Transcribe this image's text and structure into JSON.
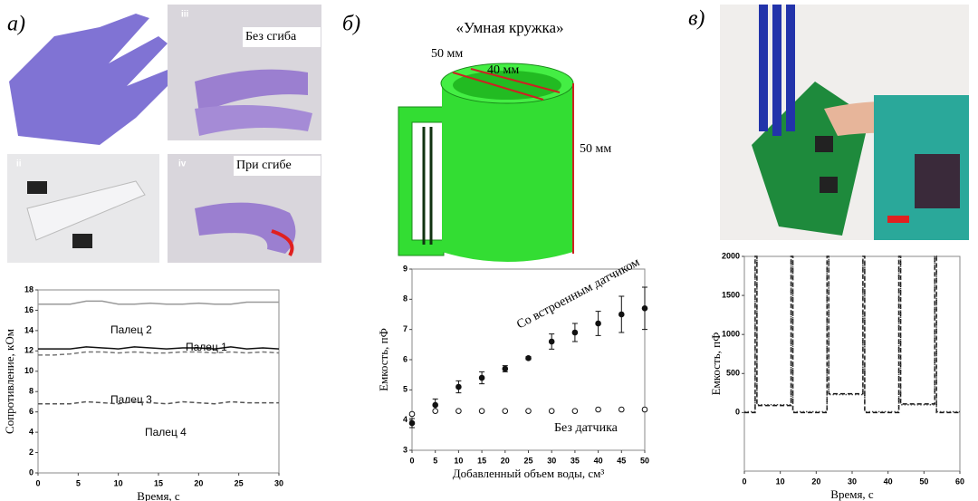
{
  "panels": {
    "a": {
      "label": "а)",
      "photo_labels": [
        "iii",
        "Без сгиба",
        "ii",
        "iv",
        "При сгибе"
      ]
    },
    "b": {
      "label": "б)",
      "title": "«Умная кружка»",
      "dims": [
        "50 мм",
        "40 мм",
        "50 мм"
      ]
    },
    "c": {
      "label": "в)"
    }
  },
  "chart_data": [
    {
      "type": "line",
      "x_label": "Время, с",
      "y_label": "Сопротивление, кОм",
      "x": [
        0,
        2,
        4,
        6,
        8,
        10,
        12,
        14,
        16,
        18,
        20,
        22,
        24,
        26,
        28,
        30
      ],
      "series": [
        {
          "name": "Палец 2",
          "color": "#999999",
          "style": "solid",
          "values": [
            16.6,
            16.6,
            16.6,
            16.9,
            16.9,
            16.6,
            16.6,
            16.7,
            16.6,
            16.6,
            16.7,
            16.6,
            16.6,
            16.8,
            16.8,
            16.8
          ]
        },
        {
          "name": "Палец 1",
          "color": "#111111",
          "style": "solid",
          "values": [
            12.2,
            12.2,
            12.2,
            12.4,
            12.3,
            12.2,
            12.4,
            12.3,
            12.2,
            12.3,
            12.3,
            12.2,
            12.4,
            12.2,
            12.3,
            12.2
          ]
        },
        {
          "name": "Палец 3",
          "color": "#777777",
          "style": "dashed",
          "values": [
            11.6,
            11.6,
            11.7,
            11.9,
            11.9,
            11.8,
            11.9,
            11.8,
            11.8,
            11.9,
            11.9,
            11.8,
            11.9,
            11.8,
            11.9,
            11.8
          ]
        },
        {
          "name": "Палец 4",
          "color": "#555555",
          "style": "dashed",
          "values": [
            6.8,
            6.8,
            6.8,
            7.0,
            6.9,
            6.8,
            7.0,
            6.9,
            6.8,
            7.0,
            6.9,
            6.8,
            7.0,
            6.9,
            6.9,
            6.9
          ]
        }
      ],
      "xlim": [
        0,
        30
      ],
      "xticks": [
        0,
        5,
        10,
        15,
        20,
        25,
        30
      ],
      "ylim": [
        0,
        18
      ],
      "yticks": [
        0,
        2,
        4,
        6,
        8,
        10,
        12,
        14,
        16,
        18
      ]
    },
    {
      "type": "scatter",
      "x_label": "Добавленный объем воды, см³",
      "y_label": "Емкость, пФ",
      "x": [
        0,
        5,
        10,
        15,
        20,
        25,
        30,
        35,
        40,
        45,
        50
      ],
      "series": [
        {
          "name": "Со встроенным датчиком",
          "color": "#111111",
          "marker": "filled",
          "values": [
            3.9,
            4.5,
            5.1,
            5.4,
            5.7,
            6.05,
            6.6,
            6.9,
            7.2,
            7.5,
            7.7
          ],
          "errors": [
            0.15,
            0.2,
            0.2,
            0.2,
            0.1,
            0.05,
            0.25,
            0.3,
            0.4,
            0.6,
            0.7
          ]
        },
        {
          "name": "Без датчика",
          "color": "#111111",
          "marker": "open",
          "values": [
            4.2,
            4.3,
            4.3,
            4.3,
            4.3,
            4.3,
            4.3,
            4.3,
            4.35,
            4.35,
            4.35
          ]
        }
      ],
      "xlim": [
        0,
        50
      ],
      "xticks": [
        0,
        5,
        10,
        15,
        20,
        25,
        30,
        35,
        40,
        45,
        50
      ],
      "ylim": [
        3,
        9
      ],
      "yticks": [
        3,
        4,
        5,
        6,
        7,
        8,
        9
      ]
    },
    {
      "type": "line",
      "x_label": "Время, с",
      "y_label": "Емкость, пФ",
      "x": [
        0,
        3,
        3,
        3.5,
        3.5,
        13,
        13,
        13.5,
        13.5,
        23,
        23,
        23.5,
        23.5,
        33,
        33,
        33.5,
        33.5,
        43,
        43,
        43.5,
        43.5,
        53,
        53,
        53.5,
        53.5,
        60
      ],
      "series": [
        {
          "color": "#111111",
          "style": "dashed",
          "values": [
            0,
            0,
            2000,
            2000,
            90,
            90,
            2000,
            2000,
            0,
            0,
            2000,
            2000,
            240,
            240,
            2000,
            2000,
            0,
            0,
            2000,
            2000,
            110,
            110,
            2000,
            2000,
            0,
            0
          ]
        },
        {
          "color": "#444444",
          "style": "dotted",
          "values": [
            10,
            10,
            2000,
            2000,
            100,
            100,
            2000,
            2000,
            10,
            10,
            2000,
            2000,
            230,
            230,
            2000,
            2000,
            10,
            10,
            2000,
            2000,
            100,
            100,
            2000,
            2000,
            10,
            10
          ]
        }
      ],
      "xlim": [
        0,
        60
      ],
      "xticks": [
        0,
        10,
        20,
        30,
        40,
        50,
        60
      ],
      "ylim": [
        -750,
        2000
      ],
      "yticks": [
        0,
        500,
        1000,
        1500,
        2000
      ]
    }
  ]
}
